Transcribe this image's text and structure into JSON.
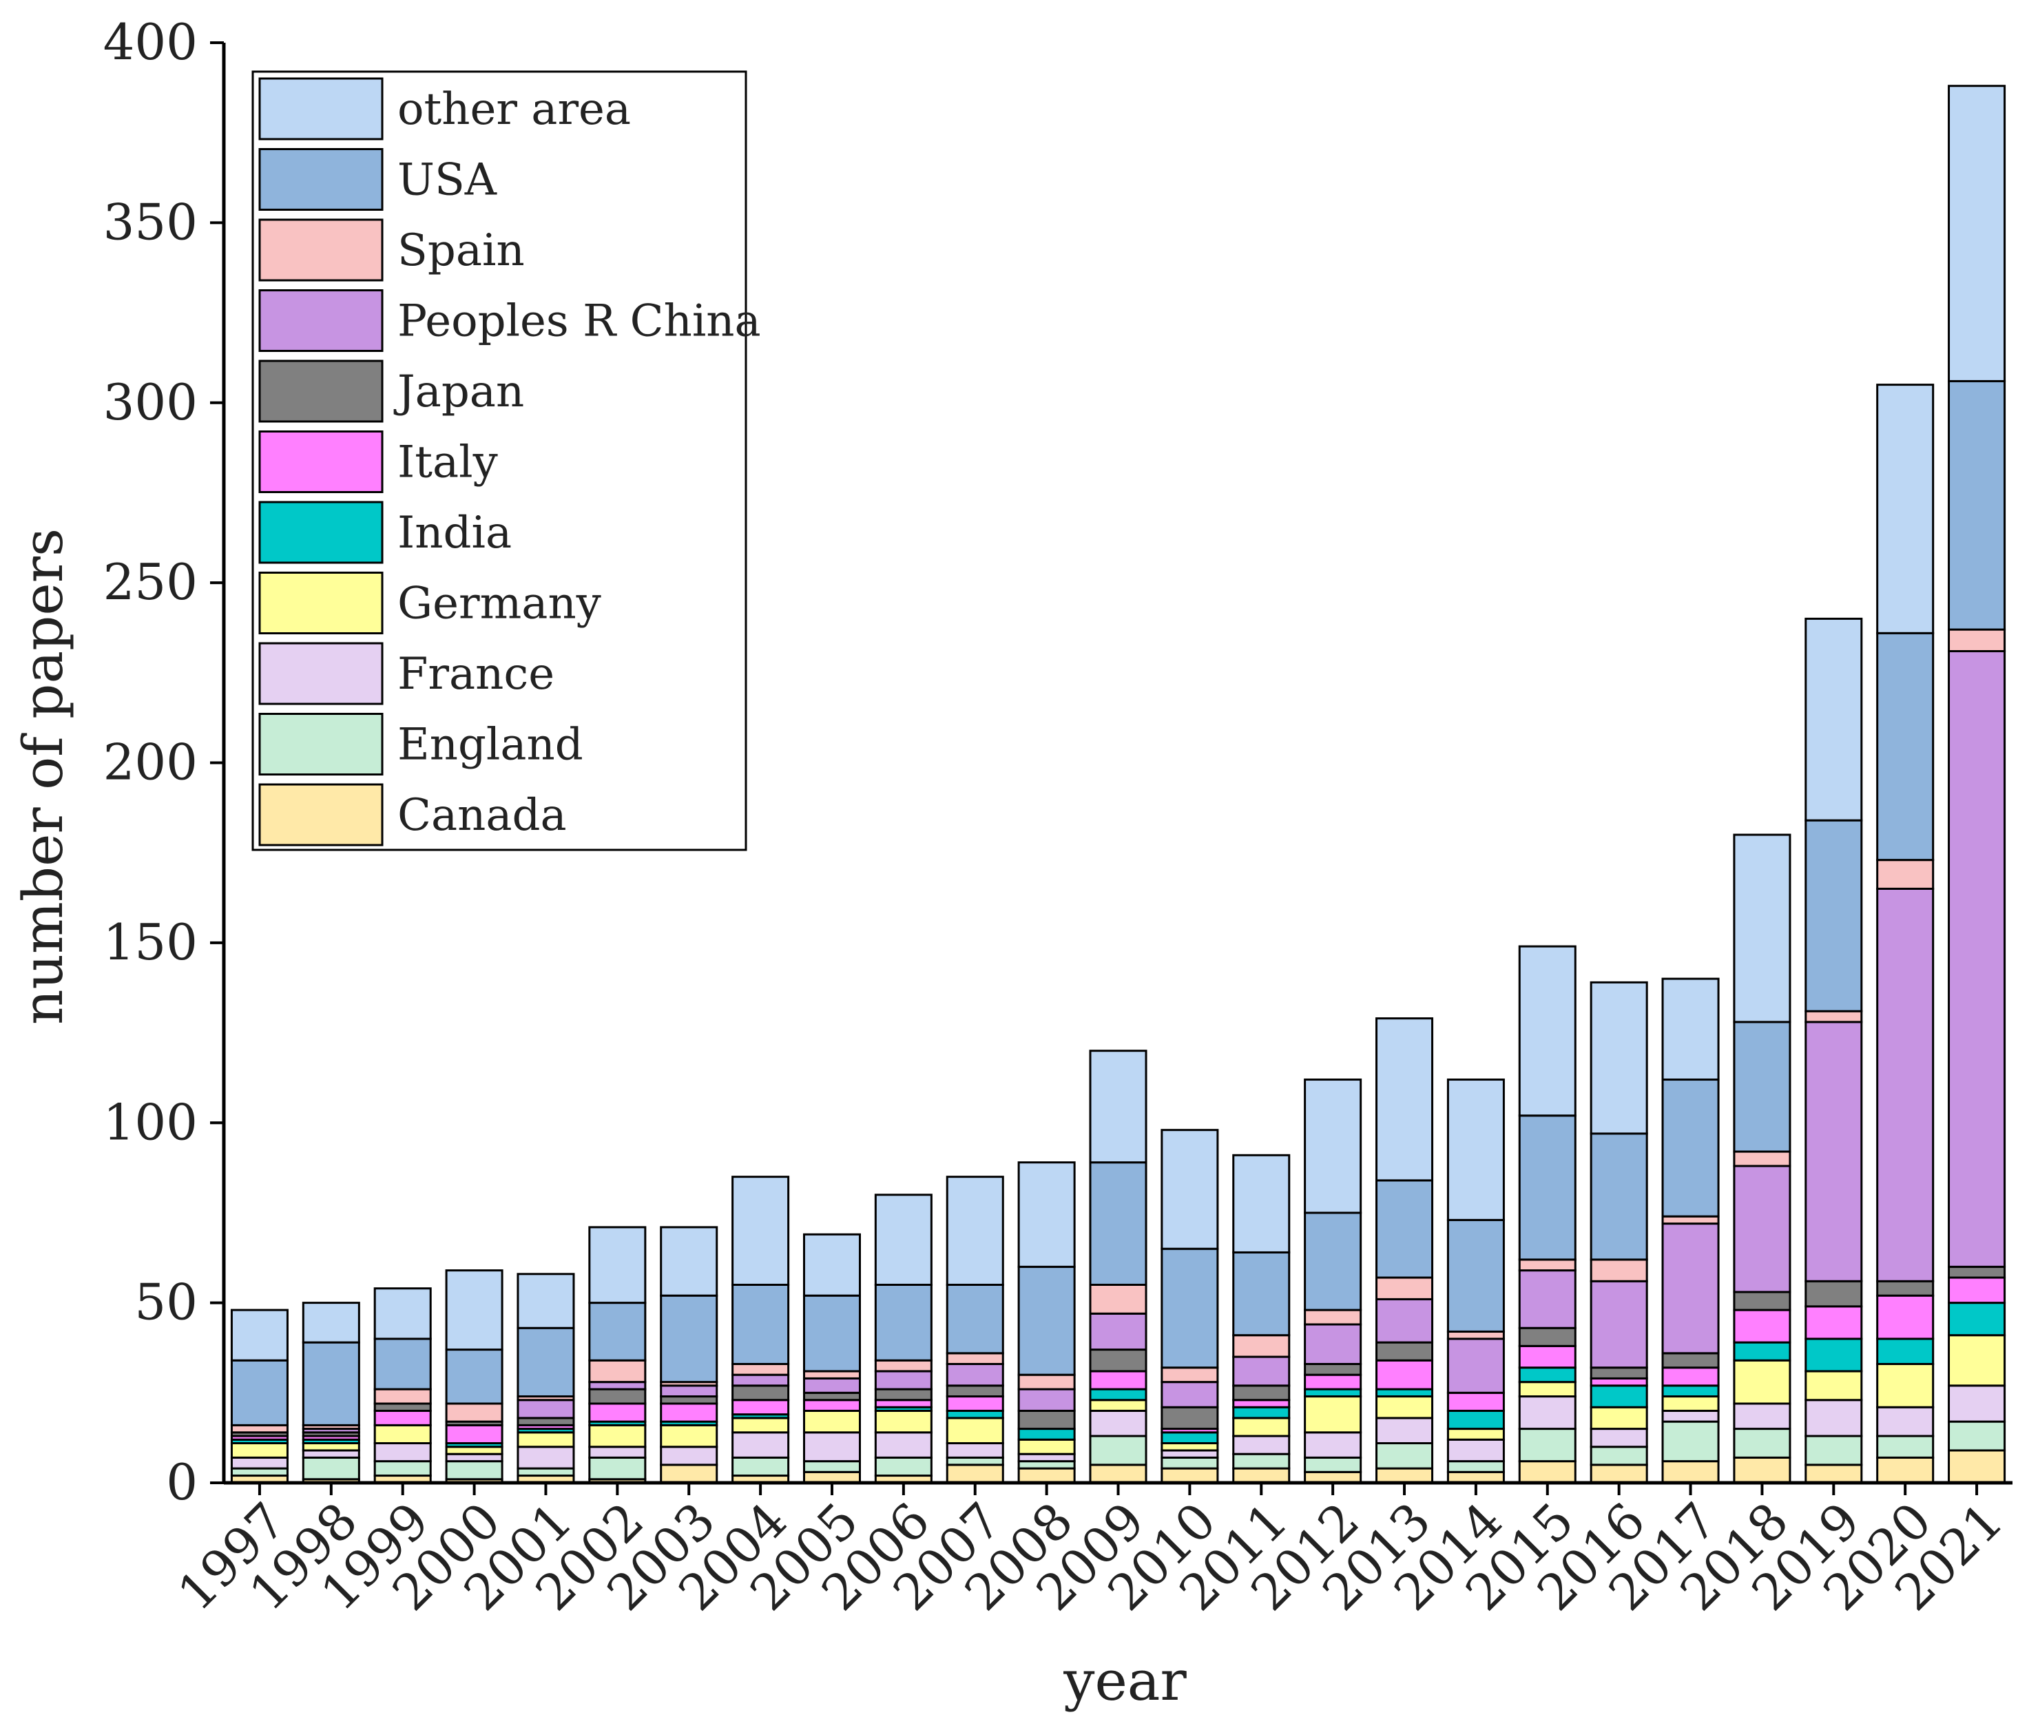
{
  "chart_data": {
    "type": "bar",
    "stacked": true,
    "title": "",
    "xlabel": "year",
    "ylabel": "number of papers",
    "ylim": [
      0,
      400
    ],
    "yticks": [
      0,
      50,
      100,
      150,
      200,
      250,
      300,
      350,
      400
    ],
    "legend_position": "top-left",
    "categories": [
      "1997",
      "1998",
      "1999",
      "2000",
      "2001",
      "2002",
      "2003",
      "2004",
      "2005",
      "2006",
      "2007",
      "2008",
      "2009",
      "2010",
      "2011",
      "2012",
      "2013",
      "2014",
      "2015",
      "2016",
      "2017",
      "2018",
      "2019",
      "2020",
      "2021"
    ],
    "series": [
      {
        "name": "Canada",
        "color": "#FFE9A8",
        "values": [
          2,
          1,
          2,
          1,
          2,
          1,
          5,
          2,
          3,
          2,
          5,
          4,
          5,
          4,
          4,
          3,
          4,
          3,
          6,
          5,
          6,
          7,
          5,
          7,
          9
        ]
      },
      {
        "name": "England",
        "color": "#C6EDD6",
        "values": [
          2,
          6,
          4,
          5,
          2,
          6,
          0,
          5,
          3,
          5,
          2,
          2,
          8,
          3,
          4,
          4,
          7,
          3,
          9,
          5,
          11,
          8,
          8,
          6,
          8
        ]
      },
      {
        "name": "France",
        "color": "#E5D0F2",
        "values": [
          3,
          2,
          5,
          2,
          6,
          3,
          5,
          7,
          8,
          7,
          4,
          2,
          7,
          2,
          5,
          7,
          7,
          6,
          9,
          5,
          3,
          7,
          10,
          8,
          10
        ]
      },
      {
        "name": "Germany",
        "color": "#FFFF99",
        "values": [
          4,
          2,
          5,
          2,
          4,
          6,
          6,
          4,
          6,
          6,
          7,
          4,
          3,
          2,
          5,
          10,
          6,
          3,
          4,
          6,
          4,
          12,
          8,
          12,
          14
        ]
      },
      {
        "name": "India",
        "color": "#00C8C8",
        "values": [
          1,
          1,
          0,
          1,
          1,
          1,
          1,
          1,
          0,
          1,
          2,
          3,
          3,
          3,
          3,
          2,
          2,
          5,
          4,
          6,
          3,
          5,
          9,
          7,
          9
        ]
      },
      {
        "name": "Italy",
        "color": "#FF80FF",
        "values": [
          1,
          1,
          4,
          5,
          1,
          5,
          5,
          4,
          3,
          2,
          4,
          0,
          5,
          1,
          2,
          4,
          8,
          5,
          6,
          2,
          5,
          9,
          9,
          12,
          7
        ]
      },
      {
        "name": "Japan",
        "color": "#808080",
        "values": [
          1,
          1,
          2,
          1,
          2,
          4,
          2,
          4,
          2,
          3,
          3,
          5,
          6,
          6,
          4,
          3,
          5,
          0,
          5,
          3,
          4,
          5,
          7,
          4,
          3
        ]
      },
      {
        "name": "Peoples R China",
        "color": "#C794E2",
        "values": [
          0,
          1,
          0,
          0,
          5,
          2,
          3,
          3,
          4,
          5,
          6,
          6,
          10,
          7,
          8,
          11,
          12,
          15,
          16,
          24,
          36,
          35,
          72,
          109,
          171
        ]
      },
      {
        "name": "Spain",
        "color": "#F9C2C2",
        "values": [
          2,
          1,
          4,
          5,
          1,
          6,
          1,
          3,
          2,
          3,
          3,
          4,
          8,
          4,
          6,
          4,
          6,
          2,
          3,
          6,
          2,
          4,
          3,
          8,
          6
        ]
      },
      {
        "name": "USA",
        "color": "#8FB4DC",
        "values": [
          18,
          23,
          14,
          15,
          19,
          16,
          24,
          22,
          21,
          21,
          19,
          30,
          34,
          33,
          23,
          27,
          27,
          31,
          40,
          35,
          38,
          36,
          53,
          63,
          69
        ]
      },
      {
        "name": "other area",
        "color": "#BDD7F4",
        "values": [
          14,
          11,
          14,
          22,
          15,
          21,
          19,
          30,
          17,
          25,
          30,
          29,
          31,
          33,
          27,
          37,
          45,
          39,
          47,
          42,
          28,
          52,
          56,
          69,
          82
        ]
      }
    ]
  }
}
